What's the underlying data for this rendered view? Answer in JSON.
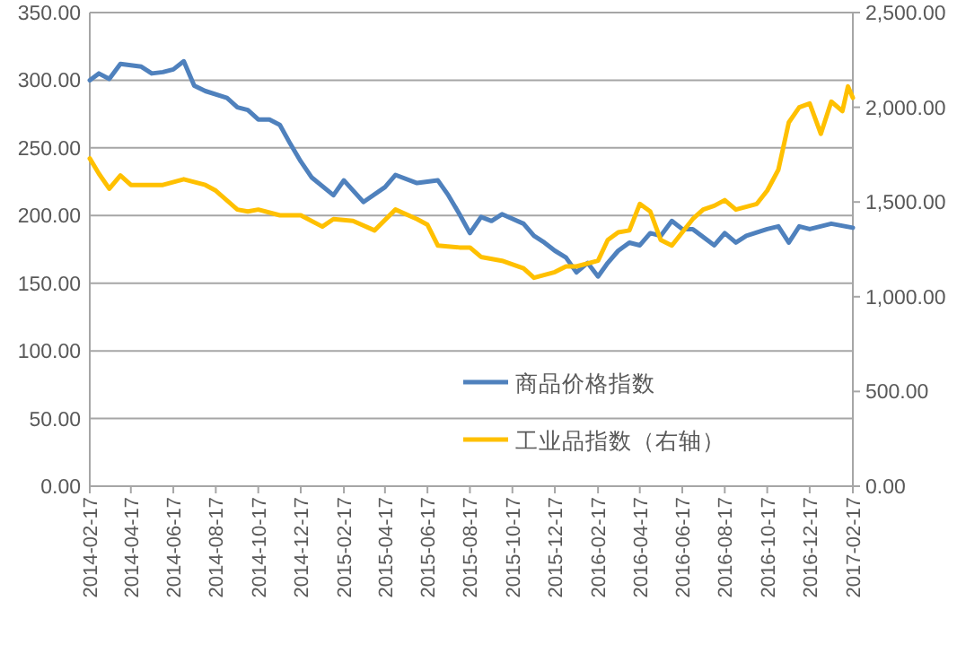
{
  "chart_data": {
    "type": "line",
    "xlim": [
      "2014-02-17",
      "2017-02-17"
    ],
    "xticks": [
      "2014-02-17",
      "2014-04-17",
      "2014-06-17",
      "2014-08-17",
      "2014-10-17",
      "2014-12-17",
      "2015-02-17",
      "2015-04-17",
      "2015-06-17",
      "2015-08-17",
      "2015-10-17",
      "2015-12-17",
      "2016-02-17",
      "2016-04-17",
      "2016-06-17",
      "2016-08-17",
      "2016-10-17",
      "2016-12-17",
      "2017-02-17"
    ],
    "ylim": [
      0,
      350
    ],
    "yticks": [
      {
        "value": 0,
        "label": "0.00"
      },
      {
        "value": 50,
        "label": "50.00"
      },
      {
        "value": 100,
        "label": "100.00"
      },
      {
        "value": 150,
        "label": "150.00"
      },
      {
        "value": 200,
        "label": "200.00"
      },
      {
        "value": 250,
        "label": "250.00"
      },
      {
        "value": 300,
        "label": "300.00"
      },
      {
        "value": 350,
        "label": "350.00"
      }
    ],
    "y2lim": [
      0,
      2500
    ],
    "y2ticks": [
      {
        "value": 0,
        "label": "0.00"
      },
      {
        "value": 500,
        "label": "500.00"
      },
      {
        "value": 1000,
        "label": "1,000.00"
      },
      {
        "value": 1500,
        "label": "1,500.00"
      },
      {
        "value": 2000,
        "label": "2,000.00"
      },
      {
        "value": 2500,
        "label": "2,500.00"
      }
    ],
    "grid": "y",
    "legend": "bottom right",
    "series": [
      {
        "name": "商品价格指数",
        "color": "#4f81bd",
        "x": [
          "2014-02-17",
          "2014-03-02",
          "2014-03-17",
          "2014-04-02",
          "2014-05-02",
          "2014-05-17",
          "2014-06-02",
          "2014-06-17",
          "2014-07-02",
          "2014-07-17",
          "2014-08-02",
          "2014-09-02",
          "2014-09-17",
          "2014-10-02",
          "2014-10-17",
          "2014-11-02",
          "2014-11-17",
          "2014-12-02",
          "2014-12-17",
          "2015-01-02",
          "2015-02-02",
          "2015-02-17",
          "2015-03-17",
          "2015-04-17",
          "2015-05-02",
          "2015-06-02",
          "2015-07-02",
          "2015-07-17",
          "2015-08-02",
          "2015-08-17",
          "2015-09-02",
          "2015-09-17",
          "2015-10-02",
          "2015-11-02",
          "2015-11-17",
          "2015-12-02",
          "2015-12-17",
          "2016-01-02",
          "2016-01-17",
          "2016-02-02",
          "2016-02-17",
          "2016-03-02",
          "2016-03-17",
          "2016-04-02",
          "2016-04-17",
          "2016-05-02",
          "2016-05-17",
          "2016-06-02",
          "2016-06-17",
          "2016-07-02",
          "2016-08-02",
          "2016-08-17",
          "2016-09-02",
          "2016-09-17",
          "2016-10-17",
          "2016-11-02",
          "2016-11-17",
          "2016-12-02",
          "2016-12-17",
          "2017-01-17",
          "2017-02-17"
        ],
        "values": [
          300,
          305,
          301,
          312,
          310,
          305,
          306,
          308,
          314,
          296,
          292,
          287,
          280,
          278,
          271,
          271,
          267,
          253,
          240,
          228,
          215,
          226,
          210,
          221,
          230,
          224,
          226,
          215,
          201,
          187,
          199,
          196,
          201,
          194,
          185,
          180,
          174,
          169,
          158,
          165,
          155,
          165,
          174,
          180,
          178,
          187,
          185,
          196,
          190,
          190,
          178,
          187,
          180,
          185,
          190,
          192,
          180,
          192,
          190,
          194,
          191
        ]
      },
      {
        "name": "工业品指数（右轴）",
        "color": "#ffc000",
        "axis": "y2",
        "x": [
          "2014-02-17",
          "2014-03-02",
          "2014-03-17",
          "2014-04-02",
          "2014-04-17",
          "2014-05-17",
          "2014-06-02",
          "2014-07-02",
          "2014-08-02",
          "2014-08-17",
          "2014-09-17",
          "2014-10-02",
          "2014-10-17",
          "2014-11-17",
          "2014-12-17",
          "2015-01-17",
          "2015-02-02",
          "2015-03-02",
          "2015-04-02",
          "2015-05-02",
          "2015-06-02",
          "2015-06-17",
          "2015-07-02",
          "2015-08-02",
          "2015-08-17",
          "2015-09-02",
          "2015-10-02",
          "2015-11-02",
          "2015-11-17",
          "2015-12-17",
          "2016-01-02",
          "2016-01-17",
          "2016-02-17",
          "2016-03-02",
          "2016-03-17",
          "2016-04-02",
          "2016-04-17",
          "2016-05-02",
          "2016-05-17",
          "2016-06-02",
          "2016-06-17",
          "2016-07-02",
          "2016-07-17",
          "2016-08-02",
          "2016-08-17",
          "2016-09-02",
          "2016-10-02",
          "2016-10-17",
          "2016-11-02",
          "2016-11-17",
          "2016-12-02",
          "2016-12-17",
          "2017-01-02",
          "2017-01-17",
          "2017-02-02",
          "2017-02-10",
          "2017-02-17"
        ],
        "values": [
          1730,
          1650,
          1570,
          1640,
          1590,
          1590,
          1590,
          1620,
          1590,
          1560,
          1460,
          1450,
          1460,
          1430,
          1430,
          1370,
          1410,
          1400,
          1350,
          1460,
          1410,
          1380,
          1270,
          1260,
          1260,
          1210,
          1190,
          1150,
          1100,
          1130,
          1160,
          1160,
          1190,
          1300,
          1340,
          1350,
          1490,
          1450,
          1300,
          1270,
          1340,
          1410,
          1460,
          1480,
          1510,
          1460,
          1490,
          1560,
          1670,
          1920,
          2000,
          2020,
          1860,
          2030,
          1980,
          2110,
          2050
        ]
      }
    ]
  }
}
